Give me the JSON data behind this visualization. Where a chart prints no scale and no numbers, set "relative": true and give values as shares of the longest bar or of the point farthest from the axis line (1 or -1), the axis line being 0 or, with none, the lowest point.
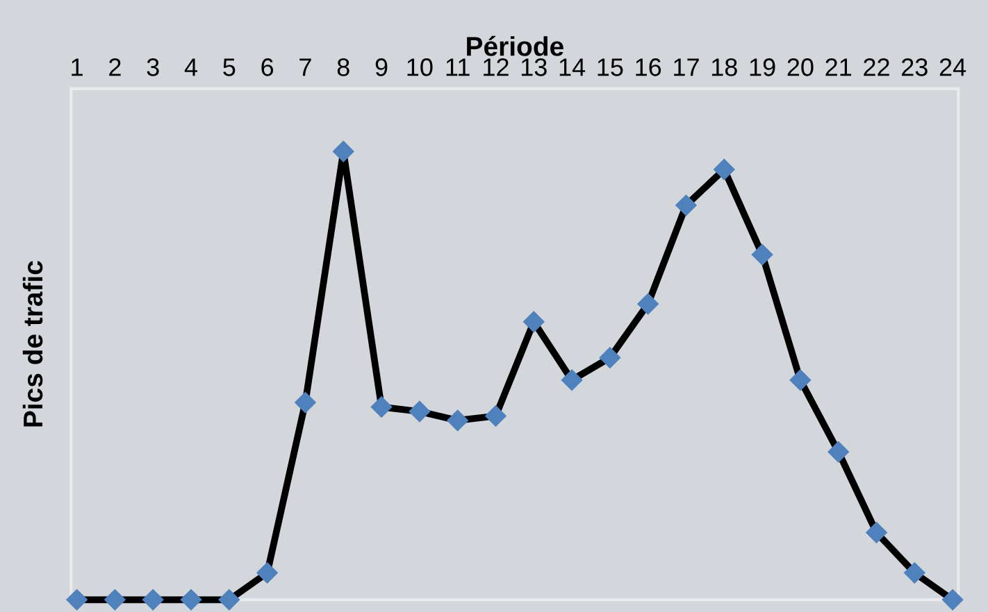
{
  "chart_data": {
    "type": "line",
    "xlabel": "Période",
    "ylabel": "Pics de trafic",
    "relative": true,
    "categories": [
      "1",
      "2",
      "3",
      "4",
      "5",
      "6",
      "7",
      "8",
      "9",
      "10",
      "11",
      "12",
      "13",
      "14",
      "15",
      "16",
      "17",
      "18",
      "19",
      "20",
      "21",
      "22",
      "23",
      "24"
    ],
    "series": [
      {
        "color": "#000000",
        "values": [
          0,
          0,
          0,
          0,
          0,
          0.06,
          0.44,
          1,
          0.43,
          0.42,
          0.4,
          0.41,
          0.62,
          0.49,
          0.54,
          0.66,
          0.88,
          0.96,
          0.77,
          0.49,
          0.33,
          0.15,
          0.06,
          0
        ]
      }
    ],
    "marker": "diamond",
    "line_style": "solid",
    "tick_labels": "x"
  }
}
